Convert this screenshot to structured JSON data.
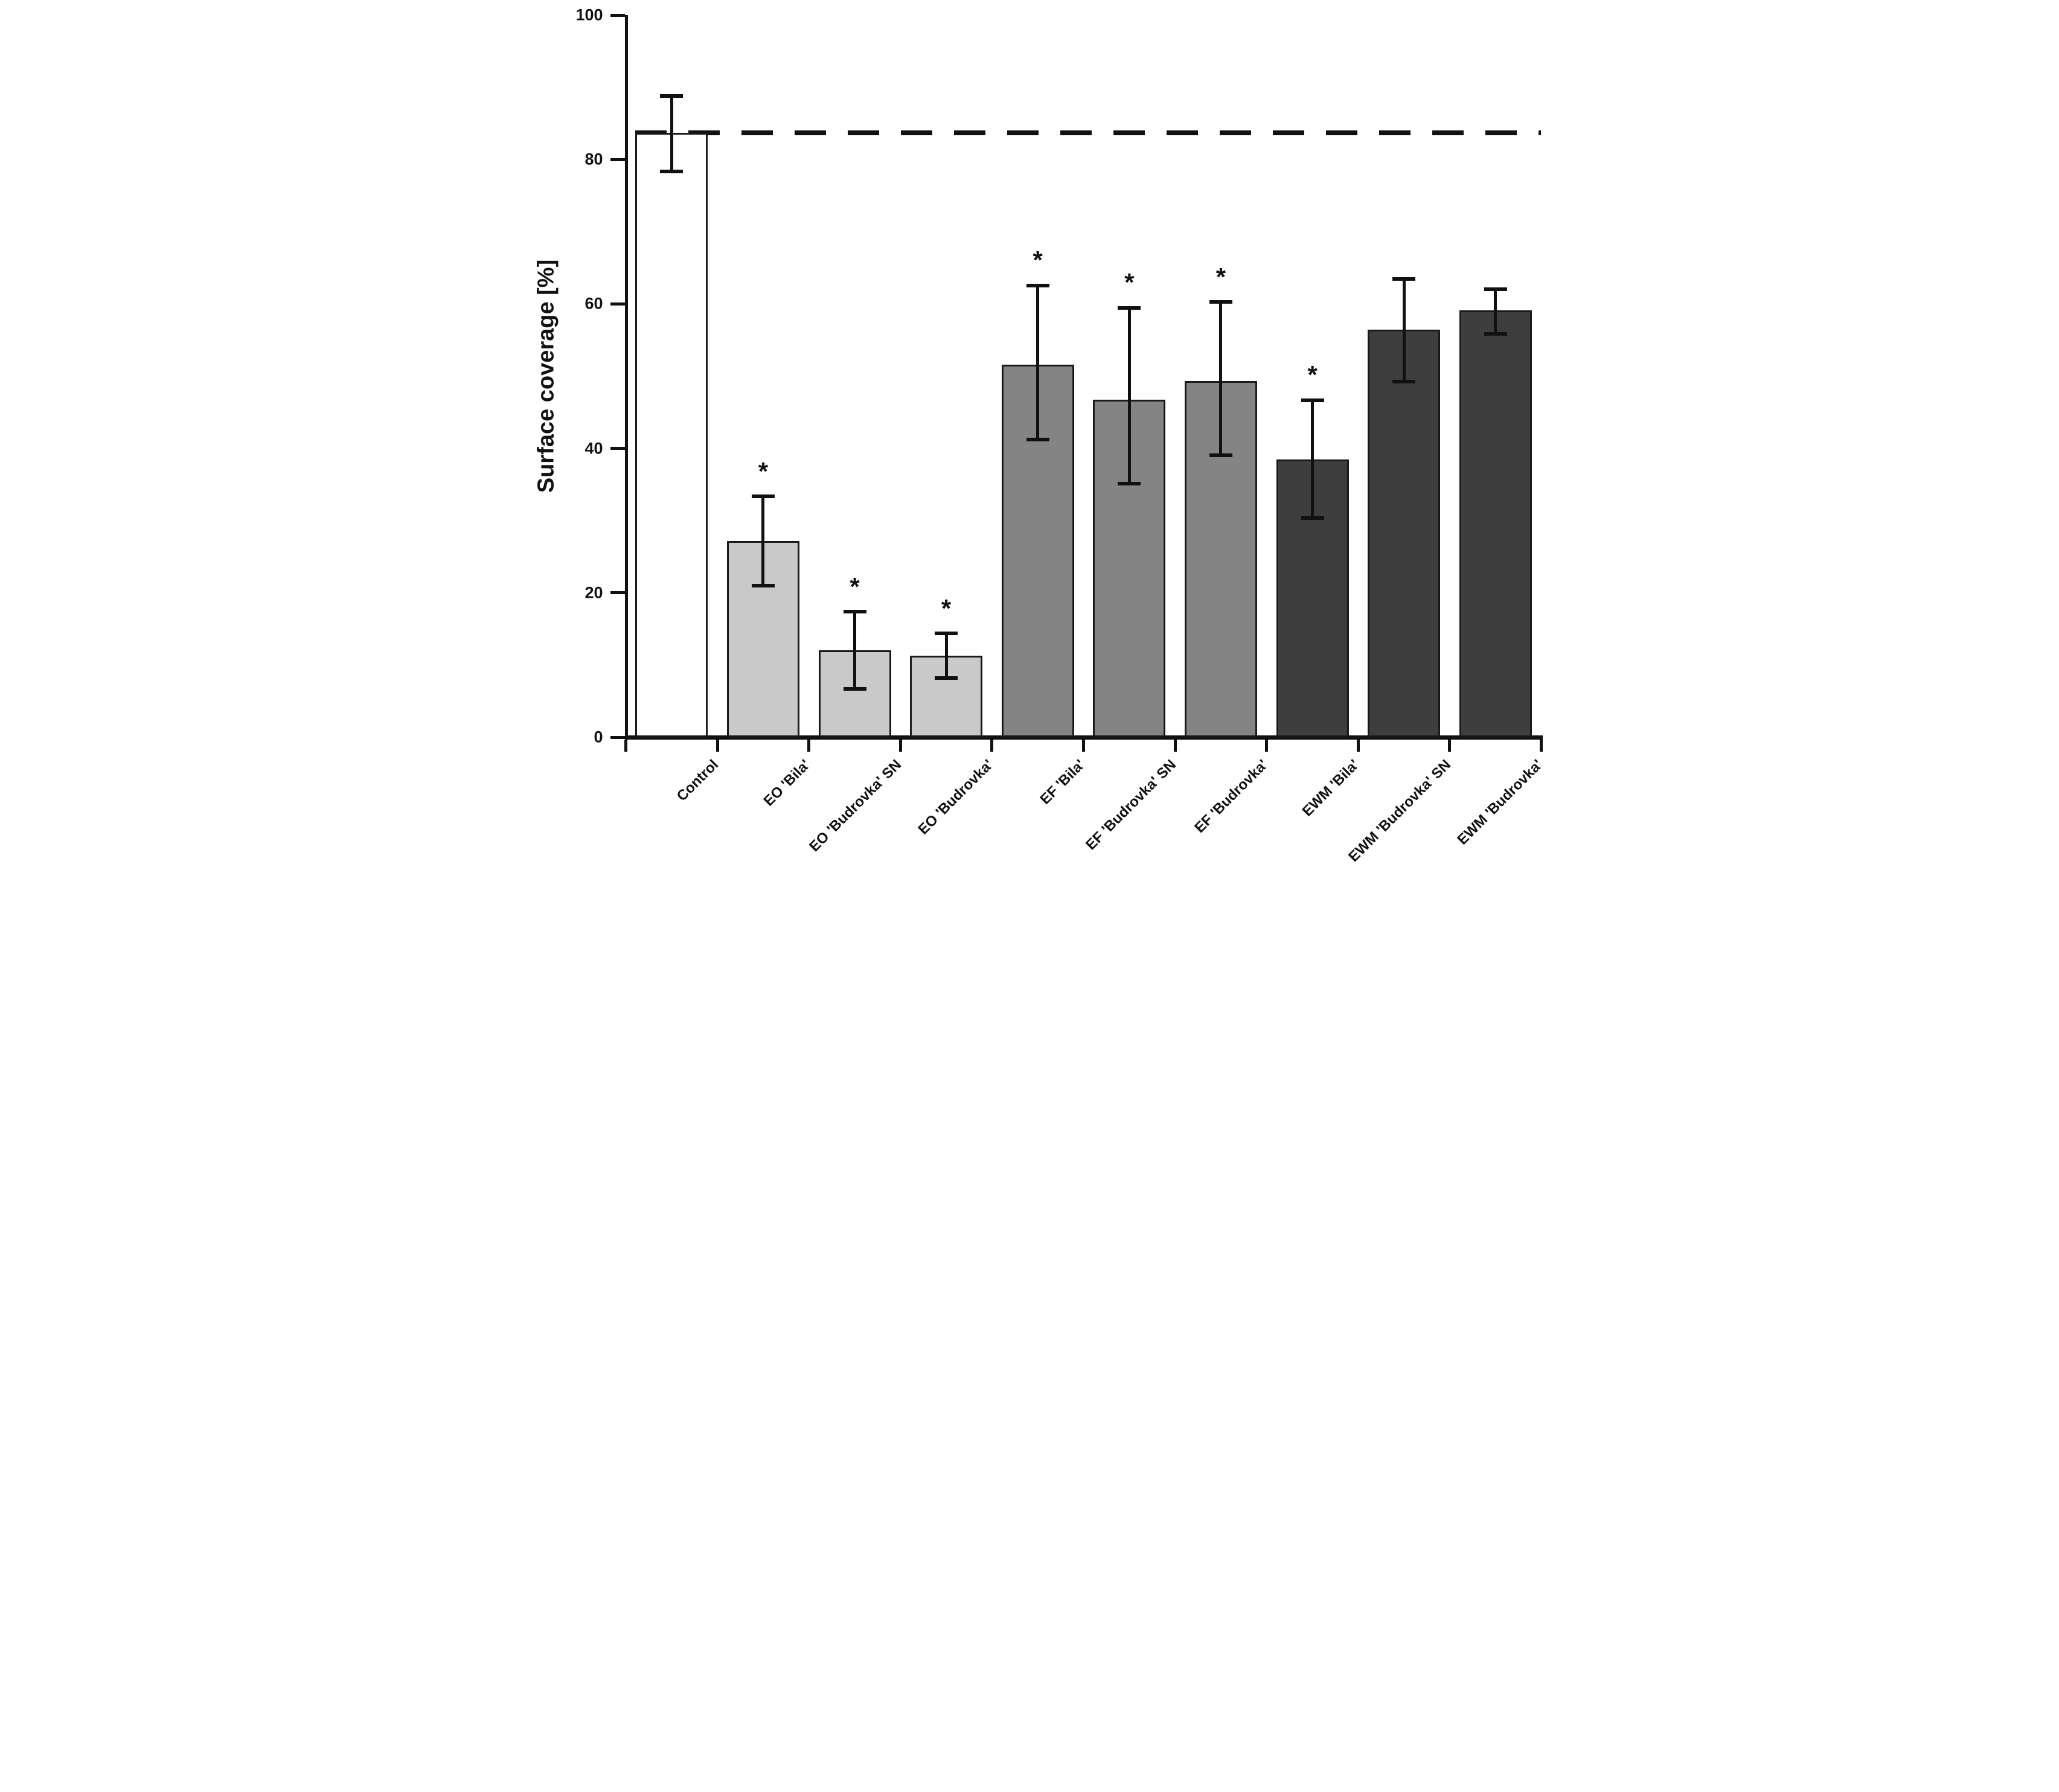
{
  "figure": {
    "background": "#ffffff"
  },
  "chart_data": {
    "type": "bar",
    "title": "",
    "xlabel": "",
    "ylabel": "Surface coverage [%]",
    "ylim": [
      0,
      100
    ],
    "yticks": [
      0,
      20,
      40,
      60,
      80,
      100
    ],
    "grid": false,
    "legend": null,
    "categories": [
      "Control",
      "EO 'Bila'",
      "EO 'Budrovka' SN",
      "EO 'Budrovka'",
      "EF 'Bila'",
      "EF 'Budrovka' SN",
      "EF 'Budrovka'",
      "EWM 'Bila'",
      "EWM 'Budrovka' SN",
      "EWM 'Budrovka'"
    ],
    "values": [
      83.7,
      27.2,
      12.0,
      11.3,
      51.6,
      46.7,
      49.3,
      38.5,
      56.4,
      59.1
    ],
    "error_up": [
      5.1,
      6.2,
      5.4,
      3.1,
      11.0,
      12.8,
      11.0,
      8.2,
      7.1,
      3.0
    ],
    "error_down": [
      5.3,
      6.2,
      5.3,
      3.1,
      10.3,
      11.5,
      10.2,
      8.1,
      7.1,
      3.2
    ],
    "significant": [
      false,
      true,
      true,
      true,
      true,
      true,
      true,
      true,
      false,
      false
    ],
    "significance_marker": "*",
    "bar_colors": [
      "#ffffff",
      "#c9c9c9",
      "#c9c9c9",
      "#c9c9c9",
      "#848484",
      "#848484",
      "#848484",
      "#3e3e3e",
      "#3e3e3e",
      "#3e3e3e"
    ],
    "bar_outline_color": "#1a1a1a",
    "reference_line": {
      "y": 83.7,
      "style": "dashed",
      "color": "#111111",
      "meaning": "control-level reference"
    },
    "layout": {
      "bar_width_fraction": 0.79,
      "x_tick_position": "category-boundaries",
      "x_label_rotation_deg": -45,
      "error_bar_caps": true
    }
  }
}
